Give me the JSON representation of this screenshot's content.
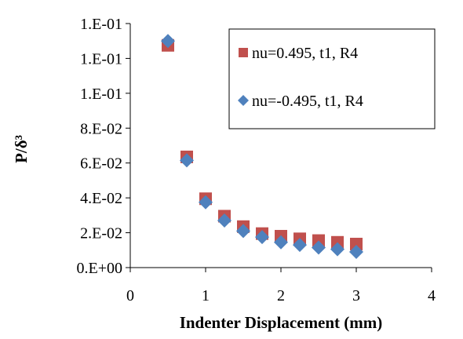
{
  "chart_data": {
    "type": "scatter",
    "title": "",
    "xlabel": "Indenter Displacement (mm)",
    "ylabel": "P/δ³",
    "xlim": [
      0,
      4
    ],
    "ylim": [
      0,
      0.14
    ],
    "grid": false,
    "legend_position": "top-right",
    "x_ticks": [
      0,
      1,
      2,
      3,
      4
    ],
    "x_tick_labels": [
      "0",
      "1",
      "2",
      "3",
      "4"
    ],
    "y_ticks": [
      0,
      0.02,
      0.04,
      0.06,
      0.08,
      0.1,
      0.12,
      0.14
    ],
    "y_tick_labels": [
      "0.E+00",
      "2.E-02",
      "4.E-02",
      "6.E-02",
      "8.E-02",
      "1.E-01",
      "1.E-01",
      "1.E-01"
    ],
    "series": [
      {
        "name": "nu=0.495, t1, R4",
        "marker": "square",
        "color": "#c0504d",
        "x": [
          0.5,
          0.75,
          1.0,
          1.25,
          1.5,
          1.75,
          2.0,
          2.25,
          2.5,
          2.75,
          3.0
        ],
        "y": [
          0.1275,
          0.0635,
          0.0395,
          0.0295,
          0.0235,
          0.0195,
          0.018,
          0.0165,
          0.0155,
          0.0145,
          0.0135
        ]
      },
      {
        "name": "nu=-0.495, t1, R4",
        "marker": "diamond",
        "color": "#4f81bd",
        "x": [
          0.5,
          0.75,
          1.0,
          1.25,
          1.5,
          1.75,
          2.0,
          2.25,
          2.5,
          2.75,
          3.0
        ],
        "y": [
          0.13,
          0.0615,
          0.0375,
          0.027,
          0.021,
          0.0175,
          0.0145,
          0.013,
          0.0115,
          0.0105,
          0.009
        ]
      }
    ]
  }
}
